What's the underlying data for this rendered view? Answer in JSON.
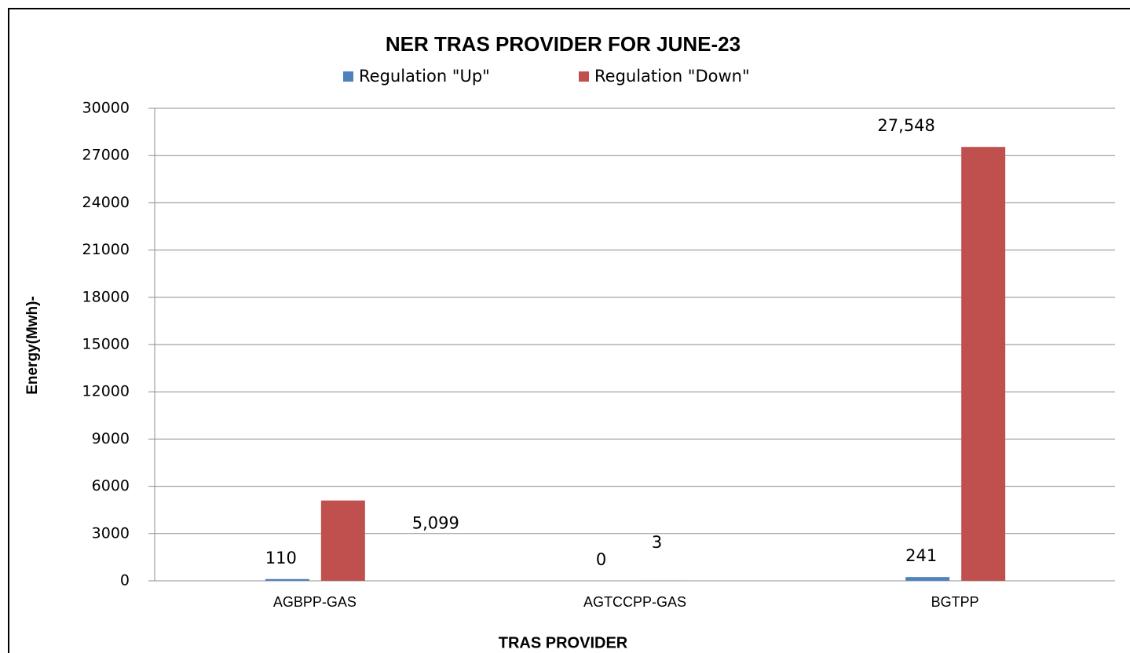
{
  "chart_data": {
    "type": "bar",
    "title": "NER TRAS PROVIDER FOR JUNE-23",
    "x_label": "TRAS PROVIDER",
    "y_label": "Energy(Mwh)-",
    "categories": [
      "AGBPP-GAS",
      "AGTCCPP-GAS",
      "BGTPP"
    ],
    "series": [
      {
        "name": "Regulation \"Up\"",
        "color": "#4f81bd",
        "values": [
          110,
          0,
          241
        ]
      },
      {
        "name": "Regulation \"Down\"",
        "color": "#c0504d",
        "values": [
          5099,
          3,
          27548
        ],
        "value_labels": [
          "5,099",
          "3",
          "27,548"
        ]
      }
    ],
    "ylim": [
      0,
      30000
    ],
    "yticks": [
      0,
      3000,
      6000,
      9000,
      12000,
      15000,
      18000,
      21000,
      24000,
      27000,
      30000
    ],
    "grid": true,
    "legend": "top"
  }
}
